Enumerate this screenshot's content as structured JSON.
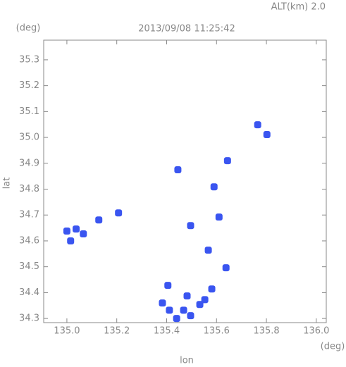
{
  "chart_data": {
    "type": "scatter",
    "title": "2013/09/08 11:25:42",
    "subtitle": "ALT(km) 2.0",
    "y_unit": "(deg)",
    "x_unit": "(deg)",
    "x_label": "lon",
    "y_label": "lat",
    "xlim": [
      134.907,
      136.04
    ],
    "ylim": [
      34.284,
      35.376
    ],
    "xticks": [
      {
        "value": 135,
        "label": "135.0"
      },
      135.2,
      135.4,
      135.6,
      135.8,
      {
        "value": 136,
        "label": "136.0"
      }
    ],
    "yticks": [
      34.3,
      34.4,
      34.5,
      34.6,
      34.7,
      34.8,
      34.9,
      {
        "value": 35,
        "label": "35.0"
      },
      35.1,
      35.2,
      35.3
    ],
    "color": "#3a55f0",
    "x": [
      135.0,
      135.066,
      135.037,
      135.015,
      135.128,
      135.207,
      135.765,
      135.802,
      135.644,
      135.445,
      135.59,
      135.496,
      135.61,
      135.567,
      135.638,
      135.581,
      135.553,
      135.482,
      135.468,
      135.411,
      135.405,
      135.496,
      135.44,
      135.383,
      135.533
    ],
    "y": [
      34.638,
      34.627,
      34.646,
      34.6,
      34.681,
      34.708,
      35.049,
      35.011,
      34.91,
      34.875,
      34.809,
      34.659,
      34.692,
      34.564,
      34.496,
      34.414,
      34.373,
      34.387,
      34.332,
      34.332,
      34.428,
      34.311,
      34.3,
      34.36,
      34.354
    ]
  }
}
